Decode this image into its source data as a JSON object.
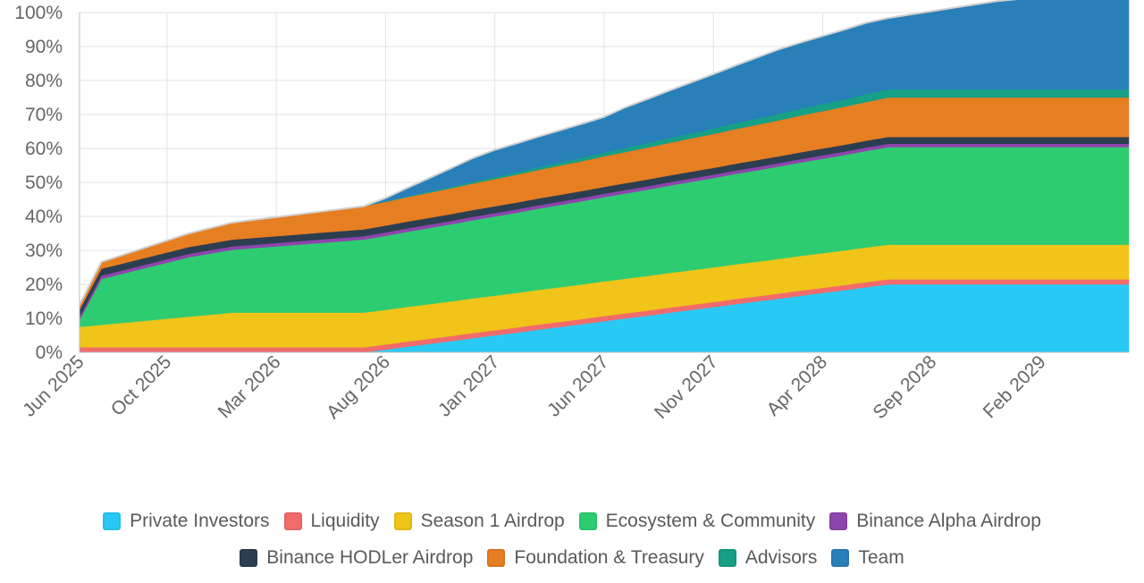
{
  "chart_data": {
    "type": "area",
    "stacked": true,
    "x_axis": {
      "tick_labels": [
        "Jun 2025",
        "Oct 2025",
        "Mar 2026",
        "Aug 2026",
        "Jan 2027",
        "Jun 2027",
        "Nov 2027",
        "Apr 2028",
        "Sep 2028",
        "Feb 2029"
      ],
      "range": [
        "2025-06",
        "2029-06"
      ]
    },
    "y_axis": {
      "tick_labels": [
        "0%",
        "10%",
        "20%",
        "30%",
        "40%",
        "50%",
        "60%",
        "70%",
        "80%",
        "90%",
        "100%"
      ],
      "range": [
        0,
        100
      ],
      "unit": "%"
    },
    "grid": true,
    "legend_position": "bottom",
    "x": [
      "2025-06",
      "2025-07",
      "2025-08",
      "2025-09",
      "2025-10",
      "2025-11",
      "2025-12",
      "2026-01",
      "2026-02",
      "2026-03",
      "2026-04",
      "2026-05",
      "2026-06",
      "2026-07",
      "2026-08",
      "2026-09",
      "2026-10",
      "2026-11",
      "2026-12",
      "2027-01",
      "2027-02",
      "2027-03",
      "2027-04",
      "2027-05",
      "2027-06",
      "2027-07",
      "2027-08",
      "2027-09",
      "2027-10",
      "2027-11",
      "2027-12",
      "2028-01",
      "2028-02",
      "2028-03",
      "2028-04",
      "2028-05",
      "2028-06",
      "2028-07",
      "2028-08",
      "2028-09",
      "2028-10",
      "2028-11",
      "2028-12",
      "2029-01",
      "2029-02",
      "2029-03",
      "2029-04",
      "2029-05",
      "2029-06"
    ],
    "series": [
      {
        "name": "Private Investors",
        "color": "#29c9f6",
        "values": [
          0,
          0,
          0,
          0,
          0,
          0,
          0,
          0,
          0,
          0,
          0,
          0,
          0,
          0,
          0.8,
          1.7,
          2.5,
          3.3,
          4.2,
          5,
          5.8,
          6.7,
          7.5,
          8.3,
          9.2,
          10,
          10.8,
          11.7,
          12.5,
          13.3,
          14.2,
          15,
          15.8,
          16.7,
          17.5,
          18.3,
          19.2,
          20,
          20,
          20,
          20,
          20,
          20,
          20,
          20,
          20,
          20,
          20,
          20
        ]
      },
      {
        "name": "Liquidity",
        "color": "#f26b6b",
        "values": [
          1.5,
          1.5,
          1.5,
          1.5,
          1.5,
          1.5,
          1.5,
          1.5,
          1.5,
          1.5,
          1.5,
          1.5,
          1.5,
          1.5,
          1.5,
          1.5,
          1.5,
          1.5,
          1.5,
          1.5,
          1.5,
          1.5,
          1.5,
          1.5,
          1.5,
          1.5,
          1.5,
          1.5,
          1.5,
          1.5,
          1.5,
          1.5,
          1.5,
          1.5,
          1.5,
          1.5,
          1.5,
          1.5,
          1.5,
          1.5,
          1.5,
          1.5,
          1.5,
          1.5,
          1.5,
          1.5,
          1.5,
          1.5,
          1.5
        ]
      },
      {
        "name": "Season 1 Airdrop",
        "color": "#f0c419",
        "values": [
          6,
          6.6,
          7.2,
          7.8,
          8.4,
          9,
          9.6,
          10.2,
          10.2,
          10.2,
          10.2,
          10.2,
          10.2,
          10.2,
          10.2,
          10.2,
          10.2,
          10.2,
          10.2,
          10.2,
          10.2,
          10.2,
          10.2,
          10.2,
          10.2,
          10.2,
          10.2,
          10.2,
          10.2,
          10.2,
          10.2,
          10.2,
          10.2,
          10.2,
          10.2,
          10.2,
          10.2,
          10.2,
          10.2,
          10.2,
          10.2,
          10.2,
          10.2,
          10.2,
          10.2,
          10.2,
          10.2,
          10.2,
          10.2
        ]
      },
      {
        "name": "Ecosystem & Community",
        "color": "#2ecc71",
        "values": [
          2,
          13.5,
          14.5,
          15.5,
          16.5,
          17.5,
          18,
          18.5,
          19,
          19.5,
          20,
          20.5,
          21,
          21.5,
          21.8,
          22.1,
          22.4,
          22.7,
          23,
          23.3,
          23.6,
          23.9,
          24.2,
          24.5,
          24.8,
          25.1,
          25.4,
          25.7,
          26,
          26.3,
          26.6,
          26.9,
          27.2,
          27.5,
          27.8,
          28.1,
          28.4,
          28.7,
          28.7,
          28.7,
          28.7,
          28.7,
          28.7,
          28.7,
          28.7,
          28.7,
          28.7,
          28.7,
          28.7
        ]
      },
      {
        "name": "Binance Alpha Airdrop",
        "color": "#8e44ad",
        "values": [
          1,
          1,
          1,
          1,
          1,
          1,
          1,
          1,
          1,
          1,
          1,
          1,
          1,
          1,
          1,
          1,
          1,
          1,
          1,
          1,
          1,
          1,
          1,
          1,
          1,
          1,
          1,
          1,
          1,
          1,
          1,
          1,
          1,
          1,
          1,
          1,
          1,
          1,
          1,
          1,
          1,
          1,
          1,
          1,
          1,
          1,
          1,
          1,
          1
        ]
      },
      {
        "name": "Binance HODLer Airdrop",
        "color": "#2c3e50",
        "values": [
          2,
          2,
          2,
          2,
          2,
          2,
          2,
          2,
          2,
          2,
          2,
          2,
          2,
          2,
          2,
          2,
          2,
          2,
          2,
          2,
          2,
          2,
          2,
          2,
          2,
          2,
          2,
          2,
          2,
          2,
          2,
          2,
          2,
          2,
          2,
          2,
          2,
          2,
          2,
          2,
          2,
          2,
          2,
          2,
          2,
          2,
          2,
          2,
          2
        ]
      },
      {
        "name": "Foundation & Treasury",
        "color": "#e67e22",
        "values": [
          1.5,
          2,
          2.5,
          3,
          3.5,
          4,
          4.5,
          5,
          5.3,
          5.6,
          5.9,
          6.2,
          6.5,
          6.8,
          7,
          7.2,
          7.4,
          7.6,
          7.8,
          8,
          8.2,
          8.4,
          8.6,
          8.8,
          9,
          9.2,
          9.4,
          9.6,
          9.8,
          10,
          10.2,
          10.4,
          10.6,
          10.8,
          11,
          11.2,
          11.4,
          11.6,
          11.6,
          11.6,
          11.6,
          11.6,
          11.6,
          11.6,
          11.6,
          11.6,
          11.6,
          11.6,
          11.6
        ]
      },
      {
        "name": "Advisors",
        "color": "#16a085",
        "values": [
          0,
          0,
          0,
          0,
          0,
          0,
          0,
          0,
          0,
          0,
          0,
          0,
          0,
          0,
          0.1,
          0.2,
          0.3,
          0.4,
          0.5,
          0.6,
          0.7,
          0.8,
          0.9,
          1,
          1.1,
          1.2,
          1.3,
          1.4,
          1.5,
          1.6,
          1.7,
          1.8,
          1.9,
          2,
          2.1,
          2.2,
          2.3,
          2.4,
          2.4,
          2.4,
          2.4,
          2.4,
          2.4,
          2.4,
          2.4,
          2.4,
          2.4,
          2.4,
          2.4
        ]
      },
      {
        "name": "Team",
        "color": "#2980b9",
        "values": [
          0,
          0,
          0,
          0,
          0,
          0,
          0,
          0,
          0,
          0,
          0,
          0,
          0,
          0,
          1,
          2.5,
          4,
          5.5,
          7,
          8,
          8.5,
          9,
          9.5,
          10,
          10.5,
          12,
          13,
          14,
          15,
          16,
          17,
          18,
          19,
          19.5,
          20,
          20.5,
          21,
          21,
          22,
          23,
          24,
          25,
          26,
          26.6,
          26.6,
          26.6,
          26.6,
          26.6,
          26.6
        ]
      }
    ]
  }
}
